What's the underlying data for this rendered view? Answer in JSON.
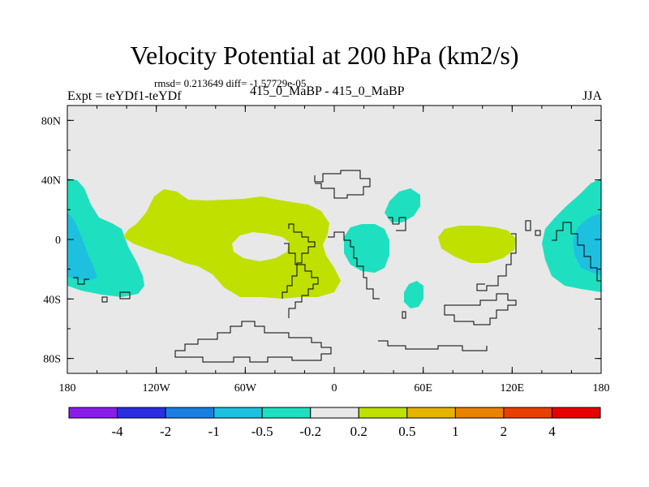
{
  "chart_data": {
    "type": "heatmap",
    "title": "Velocity Potential at 200 hPa (km2/s)",
    "stats_text": "rmsd= 0.213649 diff= -1.57729e-05",
    "left_label": "Expt = teYDf1-teYDf",
    "center_label": "415_0_MaBP - 415_0_MaBP",
    "right_label": "JJA",
    "x_axis": {
      "range": [
        -180,
        180
      ],
      "ticks": [
        -180,
        -120,
        -60,
        0,
        60,
        120,
        180
      ],
      "tick_labels": [
        "180",
        "120W",
        "60W",
        "0",
        "60E",
        "120E",
        "180"
      ]
    },
    "y_axis": {
      "range": [
        -90,
        90
      ],
      "ticks": [
        80,
        40,
        0,
        -40,
        -80
      ],
      "tick_labels": [
        "80N",
        "40N",
        "0",
        "40S",
        "80S"
      ]
    },
    "colorbar": {
      "levels": [
        "-4",
        "-2",
        "-1",
        "-0.5",
        "-0.2",
        "0.2",
        "0.5",
        "1",
        "2",
        "4"
      ],
      "colors": [
        "#8a1ee8",
        "#2a2ee0",
        "#1a7fe0",
        "#1ec0e0",
        "#1ee0c0",
        "#e8e8e8",
        "#c0e000",
        "#e6b400",
        "#e88200",
        "#e84000",
        "#e80000"
      ]
    },
    "regions": [
      {
        "name": "negative-anomaly-west-pacific",
        "range": "-0.5 to -0.2",
        "lon": [
          -180,
          -135
        ],
        "lat": [
          -35,
          40
        ]
      },
      {
        "name": "negative-anomaly-west-pacific-core",
        "range": "-1 to -0.5",
        "lon": [
          -180,
          -165
        ],
        "lat": [
          -25,
          15
        ]
      },
      {
        "name": "positive-anomaly-americas-atlantic",
        "range": "0.2 to 0.5",
        "lon": [
          -140,
          0
        ],
        "lat": [
          -40,
          35
        ]
      },
      {
        "name": "negative-anomaly-africa",
        "range": "-0.5 to -0.2",
        "lon": [
          10,
          45
        ],
        "lat": [
          -20,
          10
        ]
      },
      {
        "name": "negative-anomaly-middle-east",
        "range": "-0.5 to -0.2",
        "lon": [
          35,
          60
        ],
        "lat": [
          15,
          35
        ]
      },
      {
        "name": "negative-anomaly-madagascar",
        "range": "-0.5 to -0.2",
        "lon": [
          48,
          60
        ],
        "lat": [
          -45,
          -28
        ]
      },
      {
        "name": "positive-anomaly-indian-ocean",
        "range": "0.2 to 0.5",
        "lon": [
          70,
          125
        ],
        "lat": [
          -15,
          10
        ]
      },
      {
        "name": "negative-anomaly-west-pacific-east",
        "range": "-0.5 to -0.2",
        "lon": [
          145,
          180
        ],
        "lat": [
          -30,
          40
        ]
      },
      {
        "name": "negative-anomaly-west-pacific-east-core",
        "range": "-1 to -0.5",
        "lon": [
          165,
          180
        ],
        "lat": [
          -15,
          15
        ]
      }
    ]
  }
}
